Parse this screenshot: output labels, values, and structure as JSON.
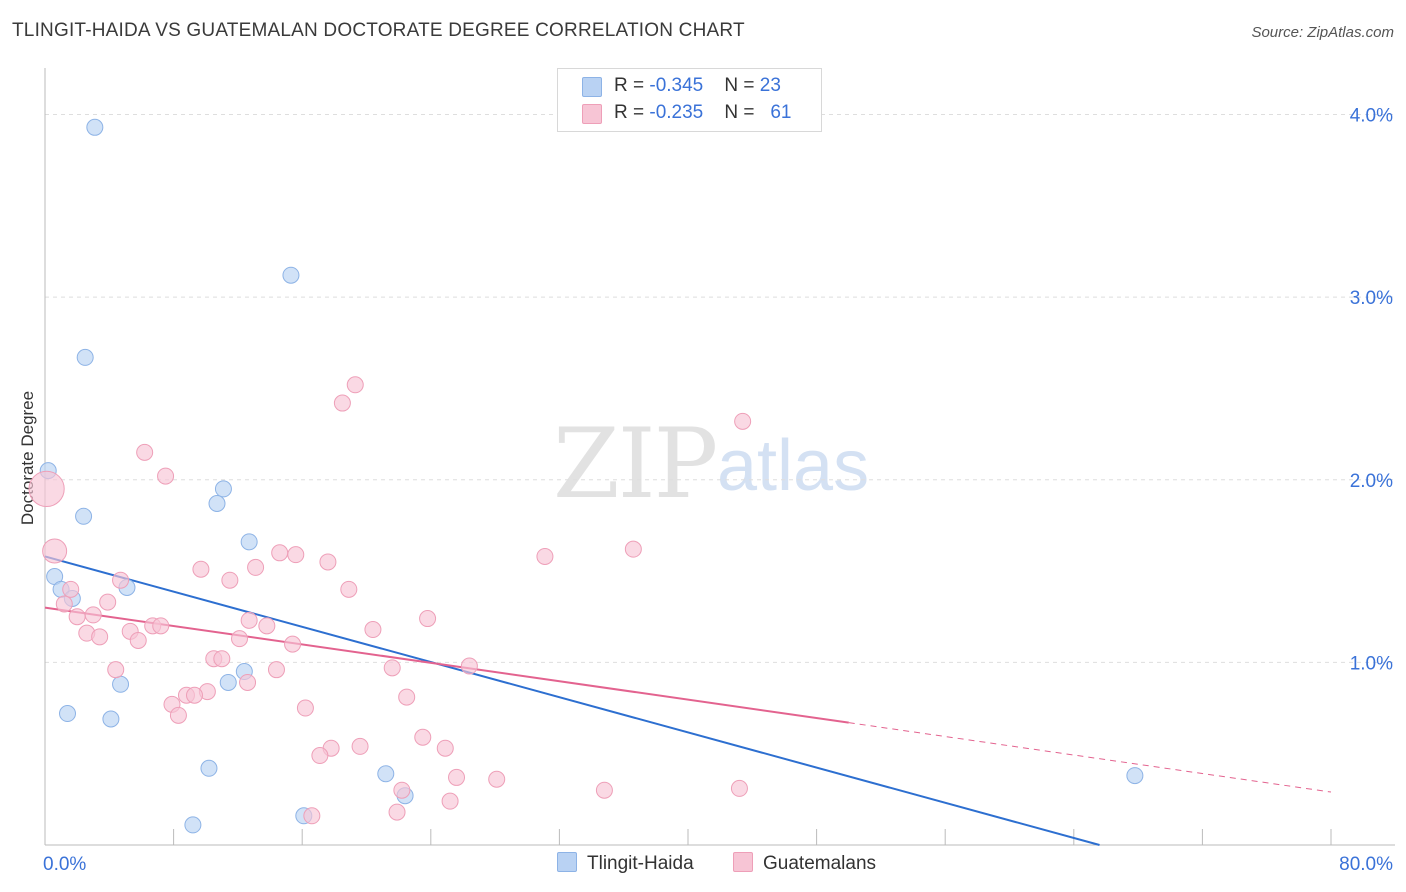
{
  "title": "TLINGIT-HAIDA VS GUATEMALAN DOCTORATE DEGREE CORRELATION CHART",
  "source": "Source: ZipAtlas.com",
  "watermark": {
    "part1": "ZIP",
    "part2": "atlas"
  },
  "legend": {
    "rows": [
      {
        "r_label": "R = ",
        "r_value": "-0.345",
        "n_label": "N = ",
        "n_value": "23"
      },
      {
        "r_label": "R = ",
        "r_value": "-0.235",
        "n_label": "N = ",
        "n_value": "61"
      }
    ]
  },
  "bottom_legend": {
    "series1": "Tlingit-Haida",
    "series2": "Guatemalans"
  },
  "colors": {
    "blue_fill": "#b9d2f3",
    "blue_stroke": "#8db3e6",
    "blue_line": "#2d6fd0",
    "pink_fill": "#f7c5d5",
    "pink_stroke": "#ee9fb8",
    "pink_line": "#e3638f",
    "grid": "#dedede",
    "tick_label": "#3a72d8"
  },
  "chart_data": {
    "type": "scatter",
    "title": "TLINGIT-HAIDA VS GUATEMALAN DOCTORATE DEGREE CORRELATION CHART",
    "xlabel": "",
    "ylabel": "Doctorate Degree",
    "xlim": [
      0,
      80
    ],
    "ylim": [
      0,
      4.2
    ],
    "x_tick_labels": [
      {
        "value": 0,
        "label": "0.0%"
      },
      {
        "value": 80,
        "label": "80.0%"
      }
    ],
    "y_tick_labels": [
      {
        "value": 1,
        "label": "1.0%"
      },
      {
        "value": 2,
        "label": "2.0%"
      },
      {
        "value": 3,
        "label": "3.0%"
      },
      {
        "value": 4,
        "label": "4.0%"
      }
    ],
    "series": [
      {
        "name": "Tlingit-Haida",
        "color": "blue",
        "R": -0.345,
        "N": 23,
        "trend": {
          "x0": 0,
          "y0": 1.58,
          "x1": 65.6,
          "y1": 0.0
        },
        "points": [
          {
            "x": 3.1,
            "y": 3.93,
            "s": 1
          },
          {
            "x": 15.3,
            "y": 3.12,
            "s": 1
          },
          {
            "x": 2.5,
            "y": 2.67,
            "s": 1
          },
          {
            "x": 0.2,
            "y": 2.05,
            "s": 1
          },
          {
            "x": 11.1,
            "y": 1.95,
            "s": 1
          },
          {
            "x": 10.7,
            "y": 1.87,
            "s": 1
          },
          {
            "x": 2.4,
            "y": 1.8,
            "s": 1
          },
          {
            "x": 12.7,
            "y": 1.66,
            "s": 1
          },
          {
            "x": 0.6,
            "y": 1.47,
            "s": 1
          },
          {
            "x": 1.0,
            "y": 1.4,
            "s": 1
          },
          {
            "x": 5.1,
            "y": 1.41,
            "s": 1
          },
          {
            "x": 1.7,
            "y": 1.35,
            "s": 1
          },
          {
            "x": 12.4,
            "y": 0.95,
            "s": 1
          },
          {
            "x": 11.4,
            "y": 0.89,
            "s": 1
          },
          {
            "x": 4.7,
            "y": 0.88,
            "s": 1
          },
          {
            "x": 1.4,
            "y": 0.72,
            "s": 1
          },
          {
            "x": 4.1,
            "y": 0.69,
            "s": 1
          },
          {
            "x": 10.2,
            "y": 0.42,
            "s": 1
          },
          {
            "x": 21.2,
            "y": 0.39,
            "s": 1
          },
          {
            "x": 67.8,
            "y": 0.38,
            "s": 1
          },
          {
            "x": 22.4,
            "y": 0.27,
            "s": 1
          },
          {
            "x": 16.1,
            "y": 0.16,
            "s": 1
          },
          {
            "x": 9.2,
            "y": 0.11,
            "s": 1
          }
        ]
      },
      {
        "name": "Guatemalans",
        "color": "pink",
        "R": -0.235,
        "N": 61,
        "trend": {
          "x0": 0,
          "y0": 1.3,
          "x1": 50,
          "y1": 0.67,
          "dashed_x1": 80,
          "dashed_y1": 0.29
        },
        "points": [
          {
            "x": 19.3,
            "y": 2.52,
            "s": 1
          },
          {
            "x": 18.5,
            "y": 2.42,
            "s": 1
          },
          {
            "x": 43.4,
            "y": 2.32,
            "s": 1
          },
          {
            "x": 6.2,
            "y": 2.15,
            "s": 1
          },
          {
            "x": 7.5,
            "y": 2.02,
            "s": 1
          },
          {
            "x": 0.1,
            "y": 1.95,
            "s": 2.2
          },
          {
            "x": 0.6,
            "y": 1.61,
            "s": 1.5
          },
          {
            "x": 36.6,
            "y": 1.62,
            "s": 1
          },
          {
            "x": 31.1,
            "y": 1.58,
            "s": 1
          },
          {
            "x": 14.6,
            "y": 1.6,
            "s": 1
          },
          {
            "x": 15.6,
            "y": 1.59,
            "s": 1
          },
          {
            "x": 17.6,
            "y": 1.55,
            "s": 1
          },
          {
            "x": 13.1,
            "y": 1.52,
            "s": 1
          },
          {
            "x": 9.7,
            "y": 1.51,
            "s": 1
          },
          {
            "x": 11.5,
            "y": 1.45,
            "s": 1
          },
          {
            "x": 4.7,
            "y": 1.45,
            "s": 1
          },
          {
            "x": 1.6,
            "y": 1.4,
            "s": 1
          },
          {
            "x": 18.9,
            "y": 1.4,
            "s": 1
          },
          {
            "x": 1.2,
            "y": 1.32,
            "s": 1
          },
          {
            "x": 3.9,
            "y": 1.33,
            "s": 1
          },
          {
            "x": 3.0,
            "y": 1.26,
            "s": 1
          },
          {
            "x": 2.0,
            "y": 1.25,
            "s": 1
          },
          {
            "x": 23.8,
            "y": 1.24,
            "s": 1
          },
          {
            "x": 12.7,
            "y": 1.23,
            "s": 1
          },
          {
            "x": 13.8,
            "y": 1.2,
            "s": 1
          },
          {
            "x": 6.7,
            "y": 1.2,
            "s": 1
          },
          {
            "x": 7.2,
            "y": 1.2,
            "s": 1
          },
          {
            "x": 20.4,
            "y": 1.18,
            "s": 1
          },
          {
            "x": 5.3,
            "y": 1.17,
            "s": 1
          },
          {
            "x": 2.6,
            "y": 1.16,
            "s": 1
          },
          {
            "x": 3.4,
            "y": 1.14,
            "s": 1
          },
          {
            "x": 12.1,
            "y": 1.13,
            "s": 1
          },
          {
            "x": 5.8,
            "y": 1.12,
            "s": 1
          },
          {
            "x": 15.4,
            "y": 1.1,
            "s": 1
          },
          {
            "x": 10.5,
            "y": 1.02,
            "s": 1
          },
          {
            "x": 11.0,
            "y": 1.02,
            "s": 1
          },
          {
            "x": 26.4,
            "y": 0.98,
            "s": 1
          },
          {
            "x": 21.6,
            "y": 0.97,
            "s": 1
          },
          {
            "x": 4.4,
            "y": 0.96,
            "s": 1
          },
          {
            "x": 14.4,
            "y": 0.96,
            "s": 1
          },
          {
            "x": 12.6,
            "y": 0.89,
            "s": 1
          },
          {
            "x": 10.1,
            "y": 0.84,
            "s": 1
          },
          {
            "x": 8.8,
            "y": 0.82,
            "s": 1
          },
          {
            "x": 9.3,
            "y": 0.82,
            "s": 1
          },
          {
            "x": 22.5,
            "y": 0.81,
            "s": 1
          },
          {
            "x": 7.9,
            "y": 0.77,
            "s": 1
          },
          {
            "x": 16.2,
            "y": 0.75,
            "s": 1
          },
          {
            "x": 8.3,
            "y": 0.71,
            "s": 1
          },
          {
            "x": 23.5,
            "y": 0.59,
            "s": 1
          },
          {
            "x": 19.6,
            "y": 0.54,
            "s": 1
          },
          {
            "x": 17.8,
            "y": 0.53,
            "s": 1
          },
          {
            "x": 24.9,
            "y": 0.53,
            "s": 1
          },
          {
            "x": 17.1,
            "y": 0.49,
            "s": 1
          },
          {
            "x": 25.6,
            "y": 0.37,
            "s": 1
          },
          {
            "x": 28.1,
            "y": 0.36,
            "s": 1
          },
          {
            "x": 22.2,
            "y": 0.3,
            "s": 1
          },
          {
            "x": 34.8,
            "y": 0.3,
            "s": 1
          },
          {
            "x": 43.2,
            "y": 0.31,
            "s": 1
          },
          {
            "x": 25.2,
            "y": 0.24,
            "s": 1
          },
          {
            "x": 21.9,
            "y": 0.18,
            "s": 1
          },
          {
            "x": 16.6,
            "y": 0.16,
            "s": 1
          }
        ]
      }
    ]
  }
}
